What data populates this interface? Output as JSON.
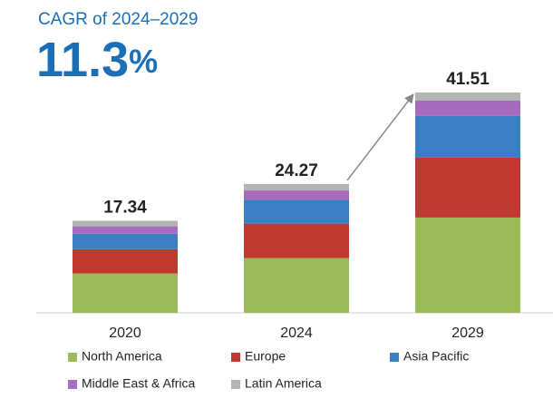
{
  "chart_data": {
    "type": "stacked_bar",
    "cagr": {
      "label": "CAGR of 2024–2029",
      "value": 11.3,
      "unit": "%"
    },
    "categories": [
      "2020",
      "2024",
      "2029"
    ],
    "totals": [
      17.34,
      24.27,
      41.51
    ],
    "series": [
      {
        "name": "North America",
        "color": "#9bbb59",
        "values": [
          7.4,
          10.3,
          17.95
        ]
      },
      {
        "name": "Europe",
        "color": "#be3a31",
        "values": [
          4.6,
          6.5,
          11.28
        ]
      },
      {
        "name": "Asia Pacific",
        "color": "#3a7fc1",
        "values": [
          2.9,
          4.5,
          7.85
        ]
      },
      {
        "name": "Middle East & Africa",
        "color": "#a66bbe",
        "values": [
          1.4,
          1.75,
          2.9
        ]
      },
      {
        "name": "Latin America",
        "color": "#b4b4b4",
        "values": [
          1.04,
          1.22,
          1.53
        ]
      }
    ]
  }
}
